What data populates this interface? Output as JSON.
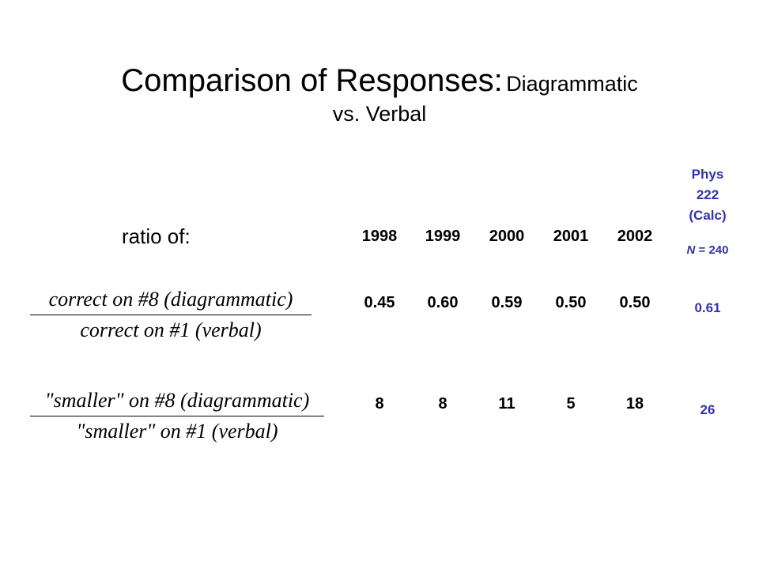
{
  "title": {
    "main": "Comparison of Responses:",
    "sub": "Diagrammatic",
    "line2": "vs. Verbal"
  },
  "ratio_label": "ratio of:",
  "years": [
    "1998",
    "1999",
    "2000",
    "2001",
    "2002"
  ],
  "phys": {
    "header_lines": [
      "Phys",
      "222",
      "(Calc)"
    ],
    "n_symbol": "N",
    "n_value": "= 240"
  },
  "rows": [
    {
      "numerator": "correct on #8 (diagrammatic)",
      "denominator": "correct on #1 (verbal)",
      "values": [
        "0.45",
        "0.60",
        "0.59",
        "0.50",
        "0.50"
      ],
      "phys_value": "0.61"
    },
    {
      "numerator": "\"smaller\" on #8 (diagrammatic)",
      "denominator": "\"smaller\" on #1 (verbal)",
      "values": [
        "8",
        "8",
        "11",
        "5",
        "18"
      ],
      "phys_value": "26"
    }
  ],
  "colors": {
    "text": "#000000",
    "phys_accent": "#3333aa",
    "background": "#ffffff"
  }
}
